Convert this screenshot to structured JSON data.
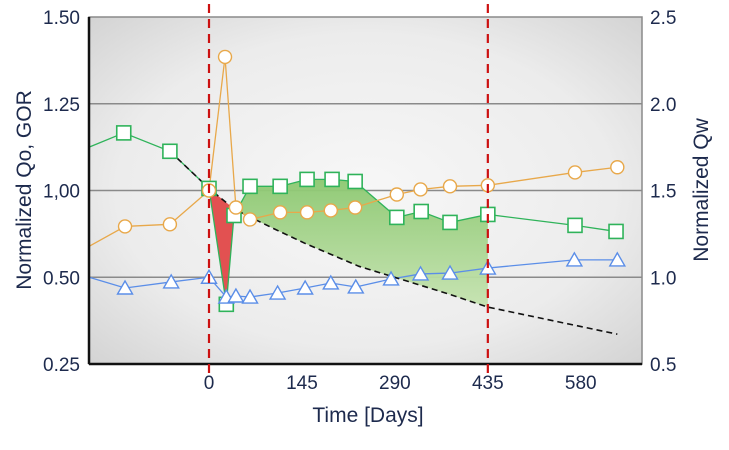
{
  "chart_data": {
    "type": "line",
    "title": "",
    "xlabel": "Time [Days]",
    "ylabel_left": "Normalized Qo, GOR",
    "ylabel_right": "Normalized Qw",
    "xlim": [
      -187,
      675
    ],
    "x_ticks": [
      0,
      145,
      290,
      435,
      580
    ],
    "x_tick_labels": [
      "0",
      "145",
      "290",
      "435",
      "580"
    ],
    "y_left_ticks": [
      0.25,
      0.5,
      1.0,
      1.25,
      1.5
    ],
    "y_left_tick_labels": [
      "0.25",
      "0.50",
      "1,00",
      "1.25",
      "1.50"
    ],
    "y_right_ticks": [
      0.5,
      1.0,
      1.5,
      2.0,
      2.5
    ],
    "y_right_tick_labels": [
      "0.5",
      "1.0",
      "1.5",
      "2.0",
      "2.5"
    ],
    "grid": true,
    "vertical_markers": [
      0,
      435
    ],
    "series": [
      {
        "name": "Qo",
        "axis": "left",
        "marker": "square",
        "color": "#2fb35a",
        "x": [
          -187,
          -133,
          -61,
          0,
          27,
          39,
          64,
          111,
          153,
          192,
          228,
          293,
          331,
          376,
          435,
          571,
          635
        ],
        "y": [
          1.125,
          1.166,
          1.113,
          1.006,
          0.422,
          0.856,
          1.012,
          1.012,
          1.032,
          1.032,
          1.026,
          0.845,
          0.879,
          0.816,
          0.862,
          0.799,
          0.764
        ]
      },
      {
        "name": "GOR",
        "axis": "left",
        "marker": "circle",
        "color": "#e8a84a",
        "x": [
          -187,
          -131,
          -61,
          0,
          25,
          42,
          64,
          111,
          153,
          190,
          228,
          293,
          330,
          376,
          435,
          571,
          637
        ],
        "y": [
          0.678,
          0.793,
          0.805,
          1.0,
          1.385,
          0.902,
          0.833,
          0.874,
          0.874,
          0.885,
          0.902,
          0.977,
          1.003,
          1.012,
          1.015,
          1.052,
          1.067
        ]
      },
      {
        "name": "Qw",
        "axis": "right",
        "marker": "triangle",
        "color": "#5b8ee8",
        "x": [
          -187,
          -131,
          -59,
          0,
          27,
          42,
          64,
          107,
          150,
          190,
          229,
          284,
          330,
          376,
          435,
          570,
          637
        ],
        "y": [
          1.0,
          0.938,
          0.973,
          1.0,
          0.886,
          0.892,
          0.886,
          0.909,
          0.938,
          0.967,
          0.944,
          0.99,
          1.019,
          1.024,
          1.053,
          1.1,
          1.1
        ]
      },
      {
        "name": "Decline",
        "axis": "left",
        "marker": "none",
        "color": "#111111",
        "dashed": true,
        "x": [
          -61,
          0,
          40,
          100,
          150,
          234,
          300,
          370,
          435,
          637
        ],
        "y": [
          1.113,
          1.006,
          0.891,
          0.782,
          0.695,
          0.563,
          0.494,
          0.454,
          0.414,
          0.336
        ]
      }
    ],
    "shaded_regions": [
      {
        "from": 0,
        "to": 39,
        "color": "#e04848"
      },
      {
        "from": 39,
        "to": 435,
        "color": "#8cc870"
      }
    ],
    "colors": {
      "marker_line": "#cc1111",
      "grid": "#8a8a8a",
      "text": "#1d2a4d"
    }
  }
}
